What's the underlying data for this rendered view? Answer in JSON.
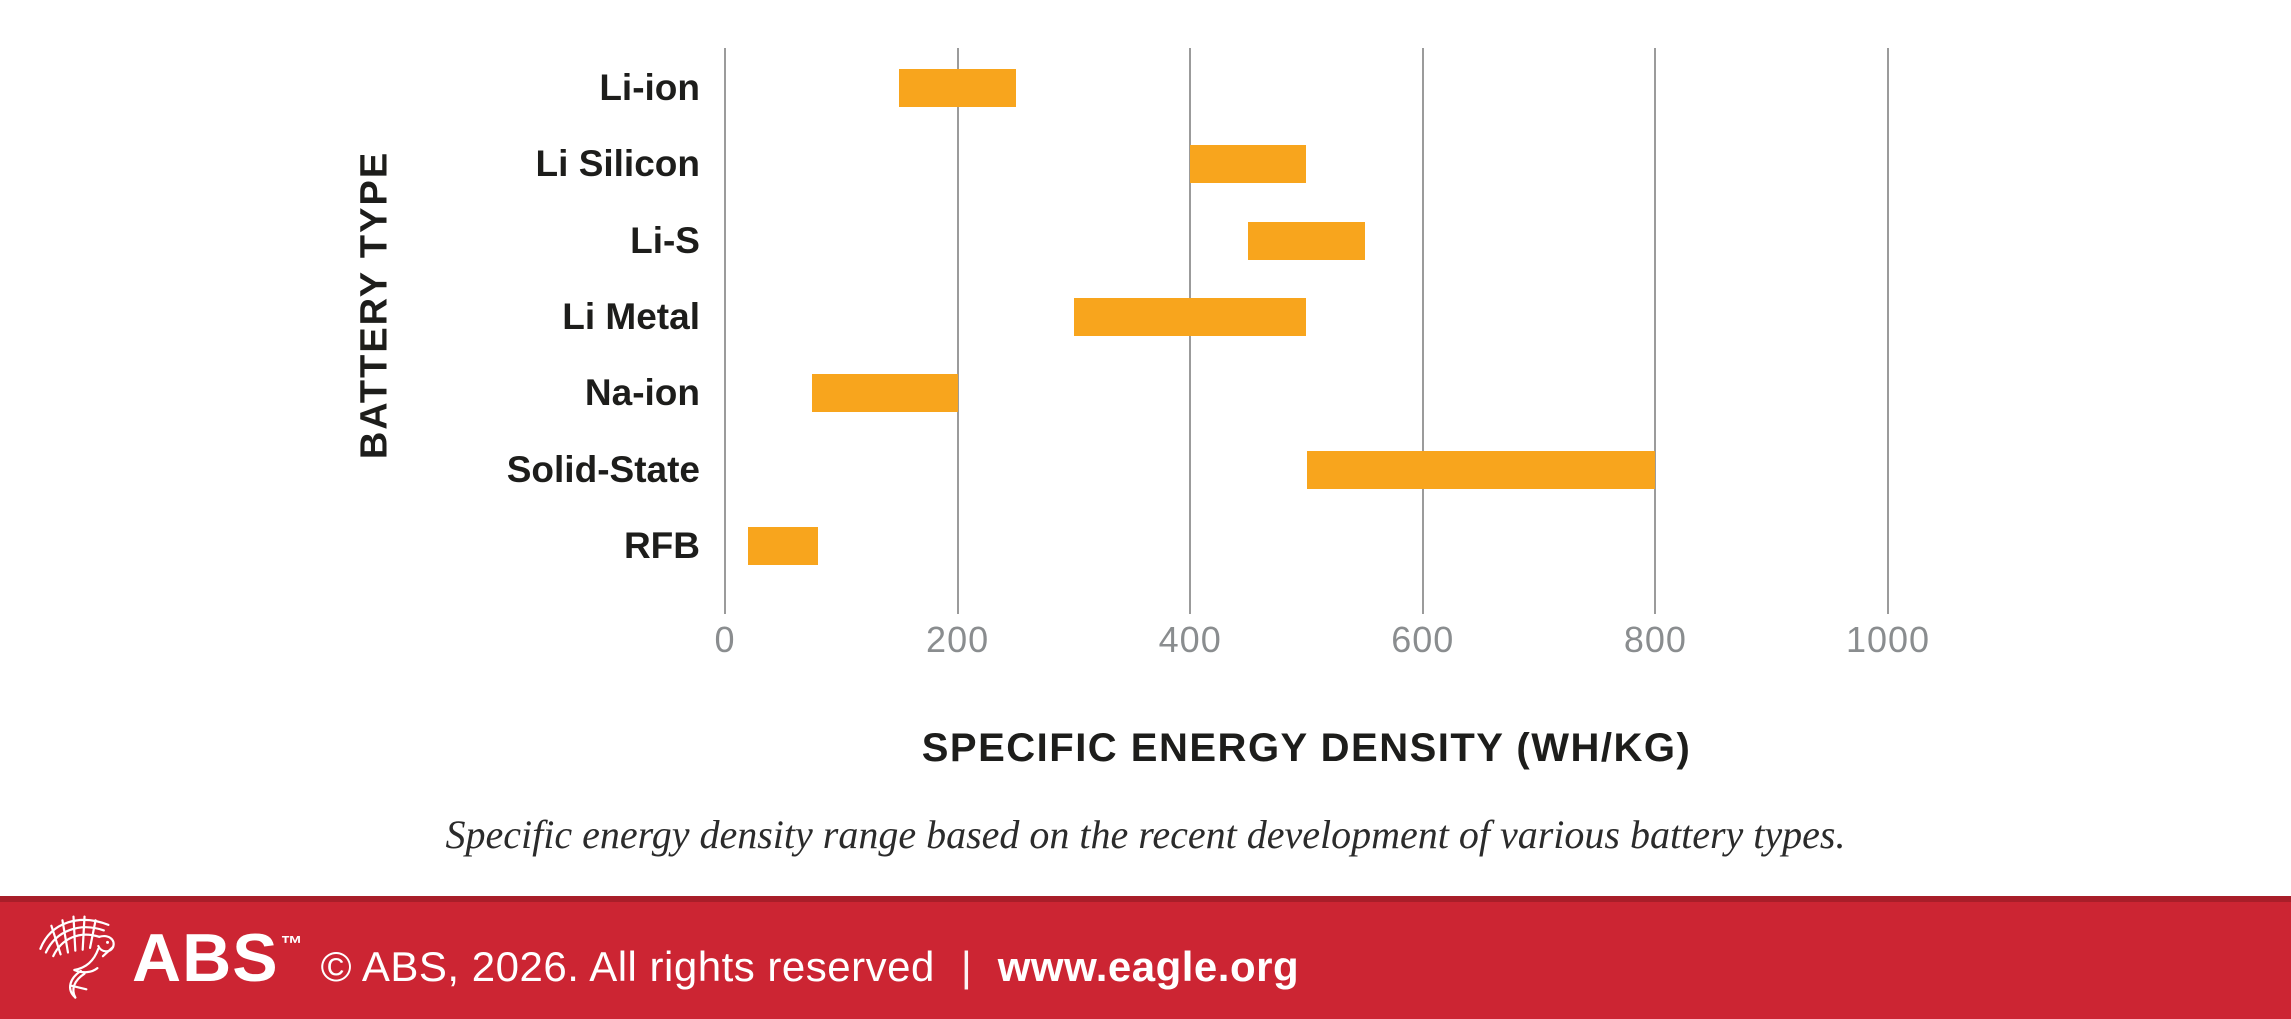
{
  "chart_data": {
    "type": "bar",
    "orientation": "horizontal-range",
    "xlabel": "SPECIFIC ENERGY DENSITY (WH/KG)",
    "ylabel": "BATTERY TYPE",
    "xlim": [
      0,
      1000
    ],
    "xticks": [
      0,
      200,
      400,
      600,
      800,
      1000
    ],
    "categories": [
      "Li-ion",
      "Li Silicon",
      "Li-S",
      "Li Metal",
      "Na-ion",
      "Solid-State",
      "RFB"
    ],
    "values": [
      {
        "category": "Li-ion",
        "min": 150,
        "max": 250
      },
      {
        "category": "Li Silicon",
        "min": 400,
        "max": 500
      },
      {
        "category": "Li-S",
        "min": 450,
        "max": 550
      },
      {
        "category": "Li Metal",
        "min": 300,
        "max": 500
      },
      {
        "category": "Na-ion",
        "min": 75,
        "max": 200
      },
      {
        "category": "Solid-State",
        "min": 500,
        "max": 800
      },
      {
        "category": "RFB",
        "min": 20,
        "max": 80
      }
    ],
    "grid": "vertical-gridlines-on",
    "legend": "none"
  },
  "caption": "Specific energy density range based on the recent development of various battery types.",
  "footer": {
    "logo_text": "ABS",
    "trademark": "™",
    "copyright": "© ABS, 2026. All rights reserved",
    "separator": "|",
    "website": "www.eagle.org"
  },
  "colors": {
    "bar": "#F8A51D",
    "gridline": "#9B9B9B",
    "tick_label": "#8A8D8F",
    "category_label": "#1D1D1B",
    "footer_bg": "#CC2533",
    "footer_stripe": "#A81E29",
    "footer_text": "#FFFFFF"
  }
}
